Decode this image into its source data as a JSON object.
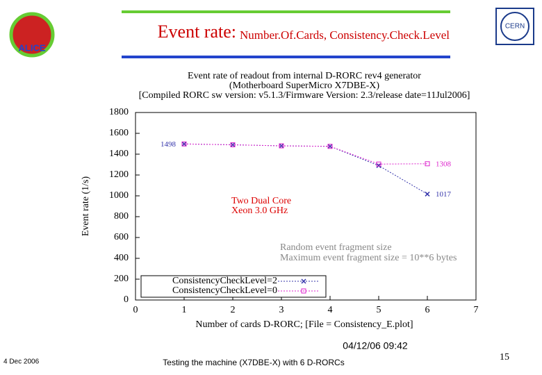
{
  "slide": {
    "title_main": "Event rate:",
    "title_sub": "Number.Of.Cards, Consistency.Check.Level",
    "footer_date": "4 Dec 2006",
    "footer_text": "Testing the machine (X7DBE-X) with 6 D-RORCs",
    "page_number": "15",
    "logo_right": "CERN",
    "logo_left": "ALICE"
  },
  "chart_data": {
    "type": "line",
    "title": [
      "Event rate of readout from internal D-RORC rev4 generator",
      "(Motherboard SuperMicro X7DBE-X)",
      "[Compiled RORC sw version: v5.1.3/Firmware Version: 2.3/release date=11Jul2006]"
    ],
    "x_label": "Number of cards D-RORC; [File = Consistency_E.plot]",
    "y_label": "Event rate (1/s)",
    "x": [
      1,
      2,
      3,
      4,
      5,
      6
    ],
    "series": [
      {
        "name": "ConsistencyCheckLevel=2",
        "color": "#3333aa",
        "marker": "x",
        "values": [
          1498,
          1490,
          1480,
          1475,
          1290,
          1017
        ],
        "value_labels": [
          "1498",
          null,
          null,
          null,
          null,
          "1017"
        ]
      },
      {
        "name": "ConsistencyCheckLevel=0",
        "color": "#dd22cc",
        "marker": "square",
        "values": [
          1498,
          1490,
          1480,
          1475,
          1305,
          1308
        ],
        "value_labels": [
          null,
          null,
          null,
          null,
          null,
          "1308"
        ]
      }
    ],
    "xlim": [
      0,
      7
    ],
    "xticks": [
      0,
      1,
      2,
      3,
      4,
      5,
      6,
      7
    ],
    "ylim": [
      0,
      1800
    ],
    "yticks": [
      0,
      200,
      400,
      600,
      800,
      1000,
      1200,
      1400,
      1600,
      1800
    ],
    "grid": false,
    "legend": "lower left",
    "annotations_red": [
      "Two Dual Core",
      "Xeon 3.0 GHz"
    ],
    "annotations_gray": [
      "Random event fragment size",
      "Maximum event fragment size = 10**6 bytes"
    ],
    "timestamp": "04/12/06 09:42"
  }
}
